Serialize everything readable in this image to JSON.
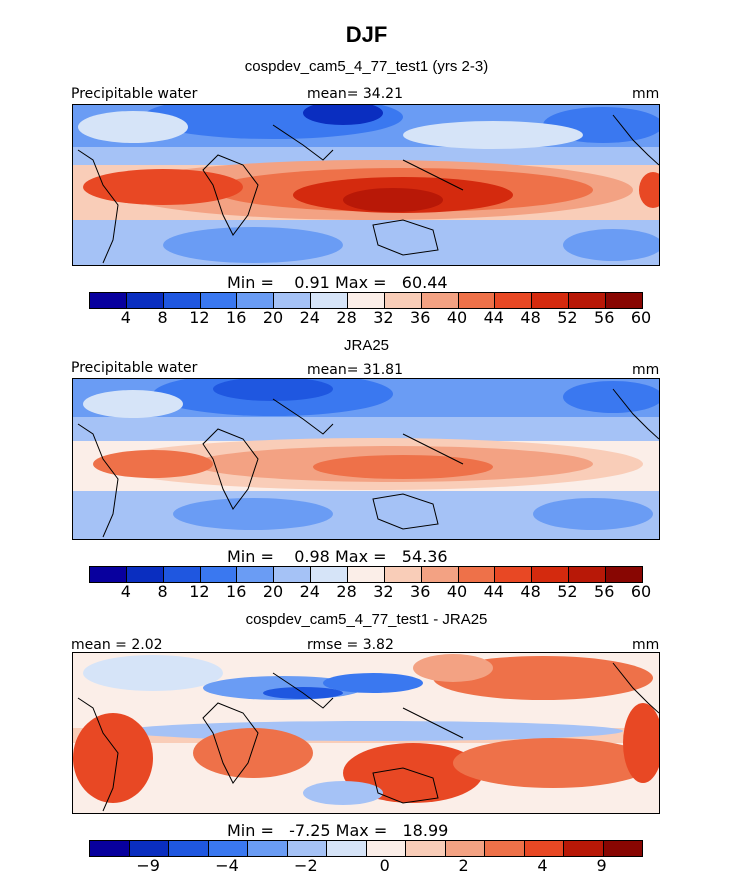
{
  "figure": {
    "title": "DJF"
  },
  "colors": {
    "abs_scale": [
      "#08009e",
      "#0a2ec0",
      "#1f57e0",
      "#3a78f0",
      "#6a9cf4",
      "#a5c2f6",
      "#d6e4f8",
      "#fbeee8",
      "#f9cdb8",
      "#f3a283",
      "#ee7149",
      "#e84824",
      "#d42a0e",
      "#b81807",
      "#880602"
    ],
    "diff_scale": [
      "#08009e",
      "#0a2ec0",
      "#1f57e0",
      "#3a78f0",
      "#6a9cf4",
      "#a5c2f6",
      "#d6e4f8",
      "#fbeee8",
      "#f9cdb8",
      "#f3a283",
      "#ee7149",
      "#e84824",
      "#b81807",
      "#880602"
    ]
  },
  "chart_data": [
    {
      "type": "heatmap",
      "title": "cospdev_cam5_4_77_test1 (yrs 2-3)",
      "variable": "Precipitable water",
      "mean_label": "mean=",
      "mean": "34.21",
      "units": "mm",
      "min_label": "Min =",
      "min": "0.91",
      "max_label": "Max =",
      "max": "60.44",
      "colorbar_ticks": [
        "4",
        "8",
        "12",
        "16",
        "20",
        "24",
        "28",
        "32",
        "36",
        "40",
        "44",
        "48",
        "52",
        "56",
        "60"
      ],
      "colorbar_levels": [
        0,
        4,
        8,
        12,
        16,
        20,
        24,
        28,
        32,
        36,
        40,
        44,
        48,
        52,
        56,
        60
      ]
    },
    {
      "type": "heatmap",
      "title": "JRA25",
      "variable": "Precipitable water",
      "mean_label": "mean=",
      "mean": "31.81",
      "units": "mm",
      "min_label": "Min =",
      "min": "0.98",
      "max_label": "Max =",
      "max": "54.36",
      "colorbar_ticks": [
        "4",
        "8",
        "12",
        "16",
        "20",
        "24",
        "28",
        "32",
        "36",
        "40",
        "44",
        "48",
        "52",
        "56",
        "60"
      ],
      "colorbar_levels": [
        0,
        4,
        8,
        12,
        16,
        20,
        24,
        28,
        32,
        36,
        40,
        44,
        48,
        52,
        56,
        60
      ]
    },
    {
      "type": "heatmap",
      "title": "cospdev_cam5_4_77_test1 - JRA25",
      "mean_label": "mean =",
      "mean": "2.02",
      "rmse_label": "rmse =",
      "rmse": "3.82",
      "units": "mm",
      "min_label": "Min =",
      "min": "-7.25",
      "max_label": "Max =",
      "max": "18.99",
      "colorbar_ticks": [
        "−9",
        "−4",
        "−2",
        "0",
        "2",
        "4",
        "9"
      ],
      "colorbar_tick_boundaries": [
        2,
        4,
        6,
        8,
        10,
        12,
        14
      ]
    }
  ]
}
